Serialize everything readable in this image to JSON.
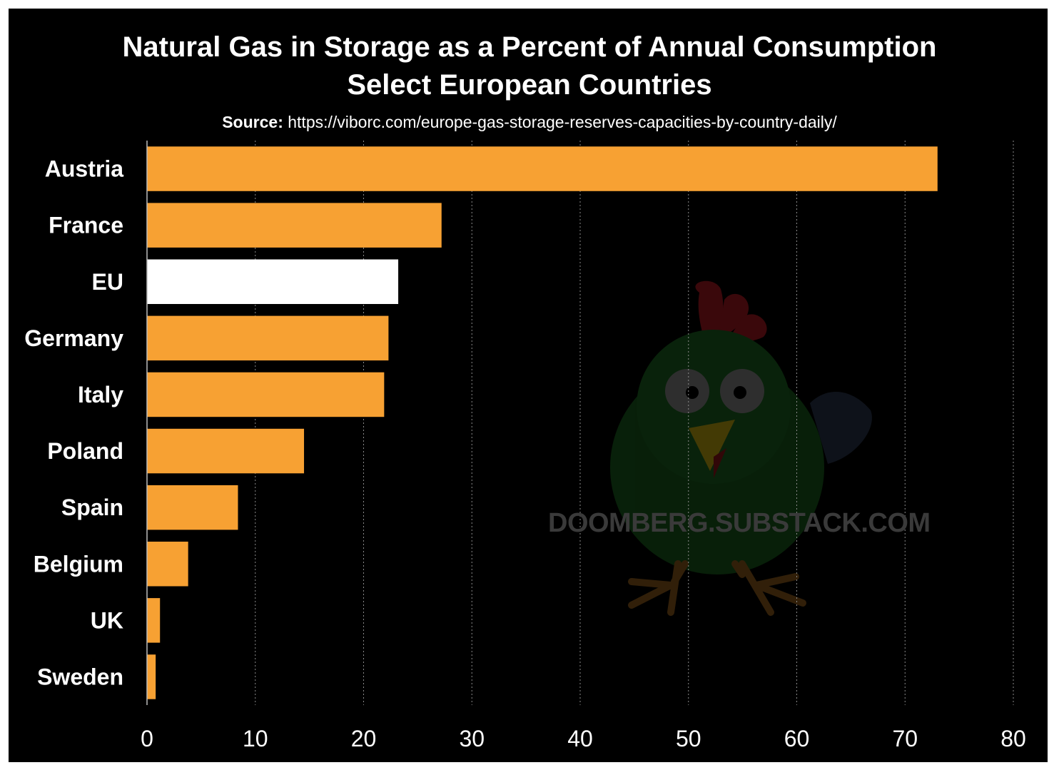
{
  "chart_data": {
    "type": "bar",
    "orientation": "horizontal",
    "title": "Natural Gas in Storage as a Percent of Annual Consumption",
    "subtitle": "Select European Countries",
    "source_label": "Source:",
    "source_url": "https://viborc.com/europe-gas-storage-reserves-capacities-by-country-daily/",
    "categories": [
      "Austria",
      "France",
      "EU",
      "Germany",
      "Italy",
      "Poland",
      "Spain",
      "Belgium",
      "UK",
      "Sweden"
    ],
    "values": [
      73,
      27.2,
      23.2,
      22.3,
      21.9,
      14.5,
      8.4,
      3.8,
      1.2,
      0.8
    ],
    "highlight_category": "EU",
    "xlim": [
      0,
      80
    ],
    "xticks": [
      0,
      10,
      20,
      30,
      40,
      50,
      60,
      70,
      80
    ],
    "grid": "vertical dashed",
    "colors": {
      "background": "#000000",
      "bar": "#f7a133",
      "highlight_bar": "#ffffff",
      "text": "#ffffff",
      "grid": "#8a8a8a"
    }
  },
  "watermark": {
    "text": "DOOMBERG.SUBSTACK.COM",
    "icon": "chicken-mascot-icon"
  }
}
